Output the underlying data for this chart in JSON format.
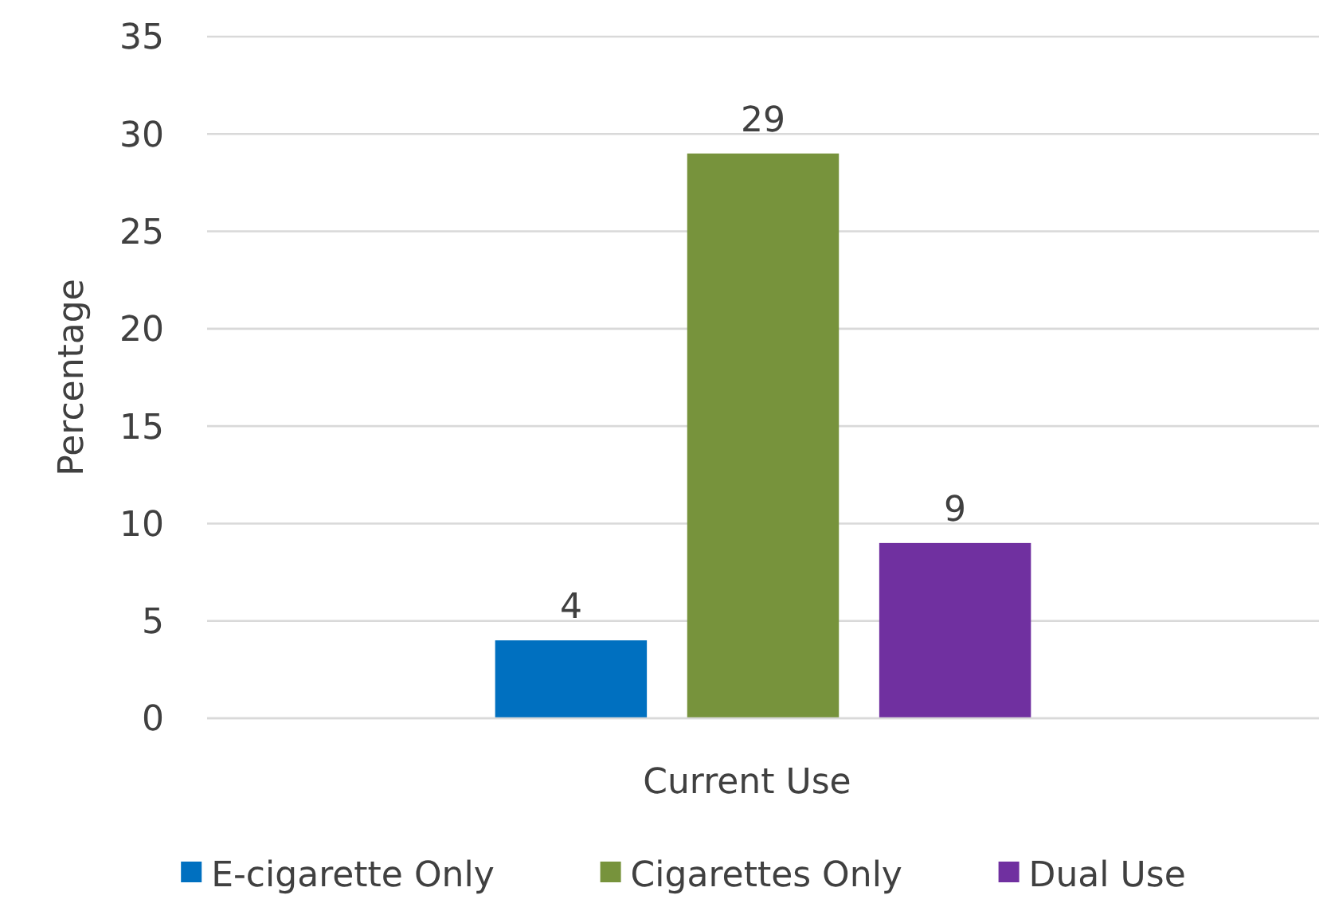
{
  "chart_data": {
    "type": "bar",
    "categories": [
      "Current Use"
    ],
    "ylabel": "Percentage",
    "series": [
      {
        "name": "E-cigarette Only",
        "color": "#0070c0",
        "values": [
          4
        ]
      },
      {
        "name": "Cigarettes Only",
        "color": "#77933c",
        "values": [
          29
        ]
      },
      {
        "name": "Dual Use",
        "color": "#7030a0",
        "values": [
          9
        ]
      }
    ],
    "ylim": [
      0,
      35
    ],
    "yticks": [
      0,
      5,
      10,
      15,
      20,
      25,
      30,
      35
    ],
    "grid": "y",
    "legend": "bottom",
    "data_labels": true
  }
}
